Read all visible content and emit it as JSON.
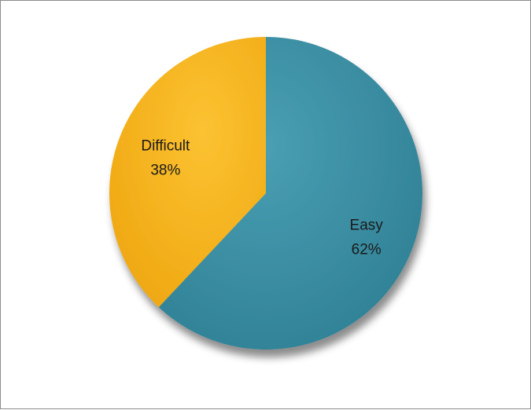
{
  "chart_data": {
    "type": "pie",
    "slices": [
      {
        "name": "Easy",
        "value": 62,
        "label": "62%",
        "color": "#3a8a9e"
      },
      {
        "name": "Difficult",
        "value": 38,
        "label": "38%",
        "color": "#f4b41a"
      }
    ],
    "start": "12 o'clock",
    "direction": "clockwise",
    "legend": "none"
  }
}
